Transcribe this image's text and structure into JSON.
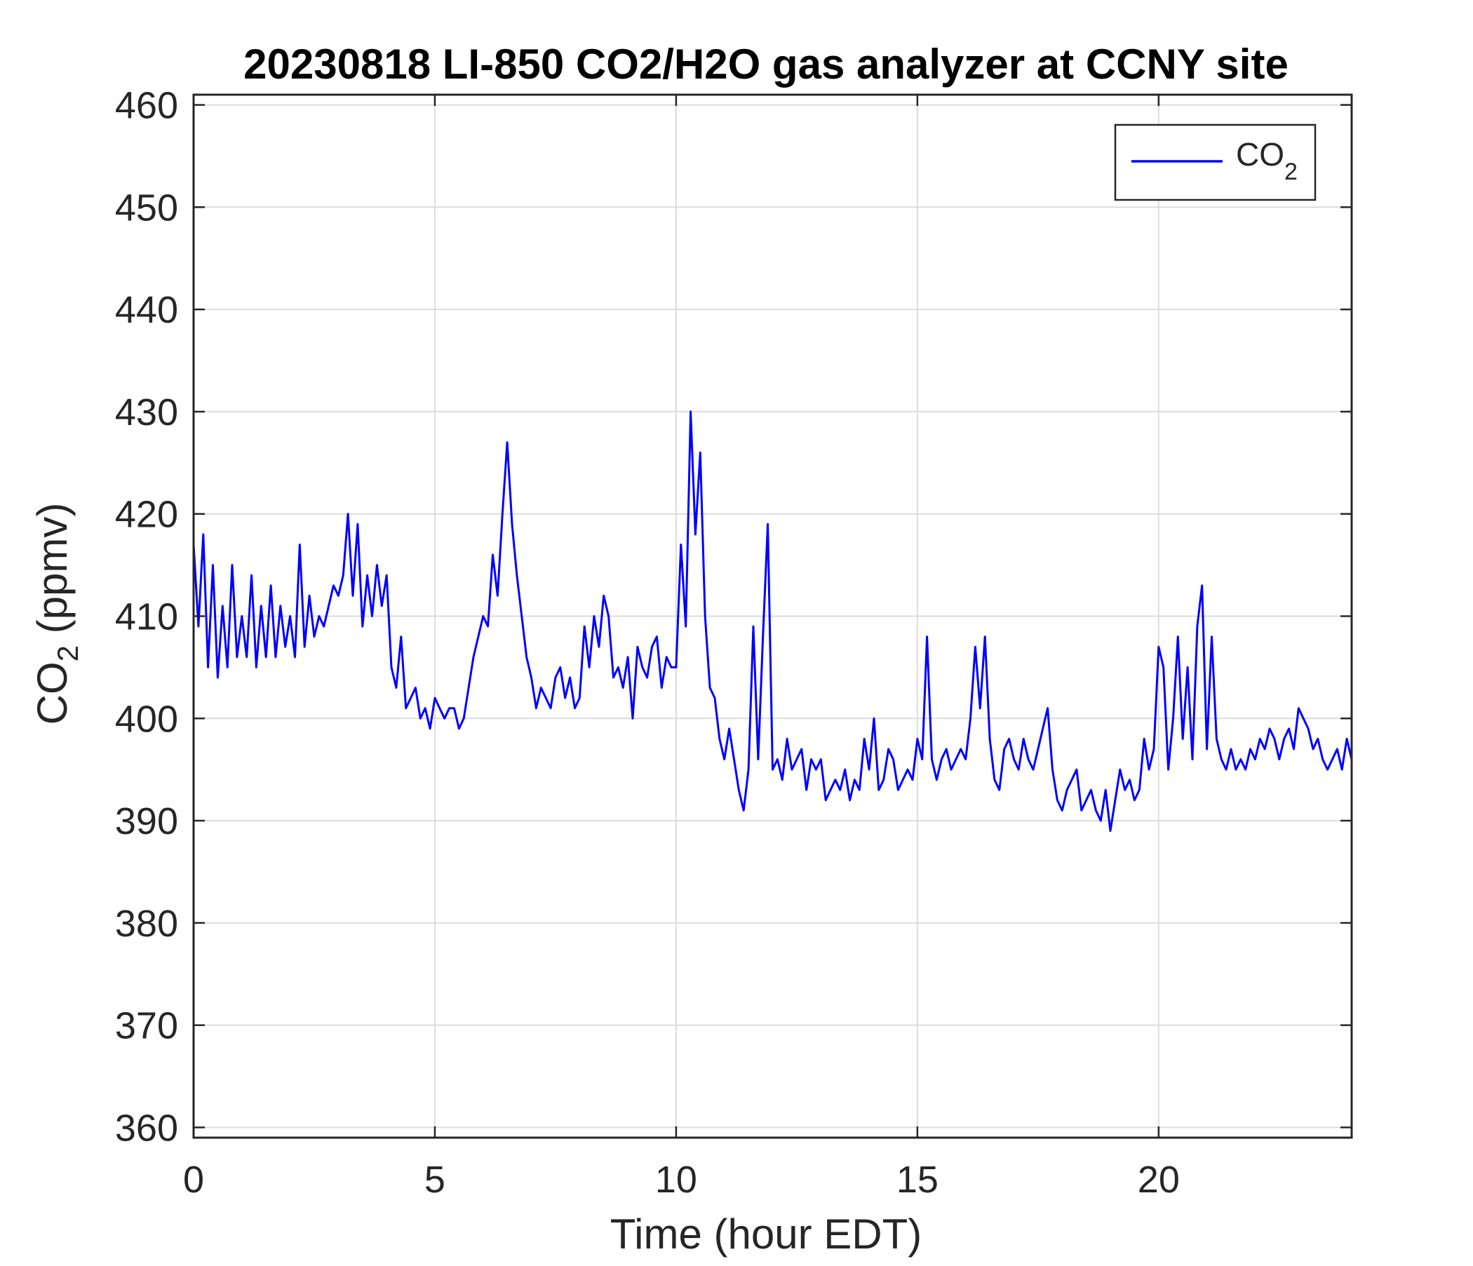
{
  "chart_data": {
    "type": "line",
    "title": "20230818 LI-850 CO2/H2O gas analyzer at CCNY site",
    "xlabel": "Time (hour EDT)",
    "ylabel": {
      "main": "CO",
      "sub": "2",
      "tail": " (ppmv)"
    },
    "xlim": [
      0,
      24
    ],
    "ylim": [
      359,
      461
    ],
    "xticks": [
      0,
      5,
      10,
      15,
      20
    ],
    "yticks": [
      360,
      370,
      380,
      390,
      400,
      410,
      420,
      430,
      440,
      450,
      460
    ],
    "grid": true,
    "legend": {
      "position": "top-right",
      "entries": [
        {
          "main": "CO",
          "sub": "2"
        }
      ]
    },
    "series": [
      {
        "name": "CO2",
        "color": "#0000ff",
        "x": [
          0,
          0.1,
          0.2,
          0.3,
          0.4,
          0.5,
          0.6,
          0.7,
          0.8,
          0.9,
          1.0,
          1.1,
          1.2,
          1.3,
          1.4,
          1.5,
          1.6,
          1.7,
          1.8,
          1.9,
          2.0,
          2.1,
          2.2,
          2.3,
          2.4,
          2.5,
          2.6,
          2.7,
          2.8,
          2.9,
          3.0,
          3.1,
          3.2,
          3.3,
          3.4,
          3.5,
          3.6,
          3.7,
          3.8,
          3.9,
          4.0,
          4.1,
          4.2,
          4.3,
          4.4,
          4.5,
          4.6,
          4.7,
          4.8,
          4.9,
          5.0,
          5.1,
          5.2,
          5.3,
          5.4,
          5.5,
          5.6,
          5.7,
          5.8,
          5.9,
          6.0,
          6.1,
          6.2,
          6.3,
          6.4,
          6.5,
          6.6,
          6.7,
          6.8,
          6.9,
          7.0,
          7.1,
          7.2,
          7.3,
          7.4,
          7.5,
          7.6,
          7.7,
          7.8,
          7.9,
          8.0,
          8.1,
          8.2,
          8.3,
          8.4,
          8.5,
          8.6,
          8.7,
          8.8,
          8.9,
          9.0,
          9.1,
          9.2,
          9.3,
          9.4,
          9.5,
          9.6,
          9.7,
          9.8,
          9.9,
          10.0,
          10.1,
          10.2,
          10.3,
          10.4,
          10.5,
          10.6,
          10.7,
          10.8,
          10.9,
          11.0,
          11.1,
          11.2,
          11.3,
          11.4,
          11.5,
          11.6,
          11.7,
          11.8,
          11.9,
          12.0,
          12.1,
          12.2,
          12.3,
          12.4,
          12.5,
          12.6,
          12.7,
          12.8,
          12.9,
          13.0,
          13.1,
          13.2,
          13.3,
          13.4,
          13.5,
          13.6,
          13.7,
          13.8,
          13.9,
          14.0,
          14.1,
          14.2,
          14.3,
          14.4,
          14.5,
          14.6,
          14.7,
          14.8,
          14.9,
          15.0,
          15.1,
          15.2,
          15.3,
          15.4,
          15.5,
          15.6,
          15.7,
          15.8,
          15.9,
          16.0,
          16.1,
          16.2,
          16.3,
          16.4,
          16.5,
          16.6,
          16.7,
          16.8,
          16.9,
          17.0,
          17.1,
          17.2,
          17.3,
          17.4,
          17.5,
          17.6,
          17.7,
          17.8,
          17.9,
          18.0,
          18.1,
          18.2,
          18.3,
          18.4,
          18.5,
          18.6,
          18.7,
          18.8,
          18.9,
          19.0,
          19.1,
          19.2,
          19.3,
          19.4,
          19.5,
          19.6,
          19.7,
          19.8,
          19.9,
          20.0,
          20.1,
          20.2,
          20.3,
          20.4,
          20.5,
          20.6,
          20.7,
          20.8,
          20.9,
          21.0,
          21.1,
          21.2,
          21.3,
          21.4,
          21.5,
          21.6,
          21.7,
          21.8,
          21.9,
          22.0,
          22.1,
          22.2,
          22.3,
          22.4,
          22.5,
          22.6,
          22.7,
          22.8,
          22.9,
          23.0,
          23.1,
          23.2,
          23.3,
          23.4,
          23.5,
          23.6,
          23.7,
          23.8,
          23.9,
          24.0
        ],
        "y": [
          417,
          409,
          418,
          405,
          415,
          404,
          411,
          405,
          415,
          406,
          410,
          406,
          414,
          405,
          411,
          406,
          413,
          406,
          411,
          407,
          410,
          406,
          417,
          407,
          412,
          408,
          410,
          409,
          411,
          413,
          412,
          414,
          420,
          412,
          419,
          409,
          414,
          410,
          415,
          411,
          414,
          405,
          403,
          408,
          401,
          402,
          403,
          400,
          401,
          399,
          402,
          401,
          400,
          401,
          401,
          399,
          400,
          403,
          406,
          408,
          410,
          409,
          416,
          412,
          420,
          427,
          419,
          414,
          410,
          406,
          404,
          401,
          403,
          402,
          401,
          404,
          405,
          402,
          404,
          401,
          402,
          409,
          405,
          410,
          407,
          412,
          410,
          404,
          405,
          403,
          406,
          400,
          407,
          405,
          404,
          407,
          408,
          403,
          406,
          405,
          405,
          417,
          409,
          430,
          418,
          426,
          410,
          403,
          402,
          398,
          396,
          399,
          396,
          393,
          391,
          395,
          409,
          396,
          408,
          419,
          395,
          396,
          394,
          398,
          395,
          396,
          397,
          393,
          396,
          395,
          396,
          392,
          393,
          394,
          393,
          395,
          392,
          394,
          393,
          398,
          395,
          400,
          393,
          394,
          397,
          396,
          393,
          394,
          395,
          394,
          398,
          396,
          408,
          396,
          394,
          396,
          397,
          395,
          396,
          397,
          396,
          400,
          407,
          401,
          408,
          398,
          394,
          393,
          397,
          398,
          396,
          395,
          398,
          396,
          395,
          397,
          399,
          401,
          395,
          392,
          391,
          393,
          394,
          395,
          391,
          392,
          393,
          391,
          390,
          393,
          389,
          392,
          395,
          393,
          394,
          392,
          393,
          398,
          395,
          397,
          407,
          405,
          395,
          400,
          408,
          398,
          405,
          396,
          409,
          413,
          397,
          408,
          398,
          396,
          395,
          397,
          395,
          396,
          395,
          397,
          396,
          398,
          397,
          399,
          398,
          396,
          398,
          399,
          397,
          401,
          400,
          399,
          397,
          398,
          396,
          395,
          396,
          397,
          395,
          398,
          396
        ]
      }
    ]
  }
}
